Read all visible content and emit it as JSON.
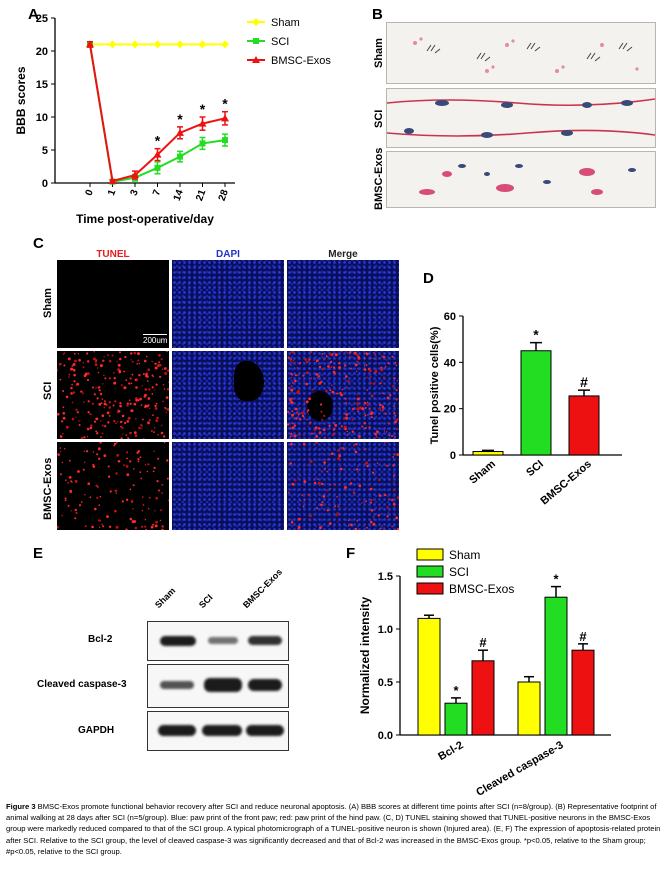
{
  "panels": {
    "A": "A",
    "B": "B",
    "C": "C",
    "D": "D",
    "E": "E",
    "F": "F"
  },
  "colors": {
    "sham": "#ffff00",
    "sci": "#22dd22",
    "bmsc": "#ee1111"
  },
  "chart_data": [
    {
      "id": "A",
      "type": "line",
      "xlabel": "Time post-operative/day",
      "ylabel": "BBB scores",
      "x": [
        0,
        1,
        3,
        7,
        14,
        21,
        28
      ],
      "ylim": [
        0,
        25
      ],
      "yticks": [
        0,
        5,
        10,
        15,
        20,
        25
      ],
      "series": [
        {
          "name": "Sham",
          "values": [
            21,
            21,
            21,
            21,
            21,
            21,
            21
          ],
          "errors": [
            0,
            0,
            0,
            0,
            0,
            0,
            0
          ]
        },
        {
          "name": "SCI",
          "values": [
            21,
            0.2,
            0.8,
            2.3,
            4,
            6,
            6.5
          ],
          "errors": [
            0.4,
            0.2,
            0.5,
            0.9,
            0.8,
            0.9,
            0.9
          ]
        },
        {
          "name": "BMSC-Exos",
          "values": [
            21,
            0.3,
            1.2,
            4.3,
            7.6,
            9,
            9.8
          ],
          "errors": [
            0.4,
            0.2,
            0.6,
            0.9,
            0.9,
            1,
            1
          ]
        }
      ],
      "significance": [
        "",
        "",
        "",
        "*",
        "*",
        "*",
        "*"
      ],
      "legend": "top-right"
    },
    {
      "id": "D",
      "type": "bar",
      "categories": [
        "Sham",
        "SCI",
        "BMSC-Exos"
      ],
      "values": [
        1.5,
        45,
        25.5
      ],
      "errors": [
        0.5,
        3.5,
        2.5
      ],
      "labels": [
        "",
        "*",
        "#"
      ],
      "ylabel": "Tunel positive cells(%)",
      "ylim": [
        0,
        60
      ],
      "yticks": [
        0,
        20,
        40,
        60
      ]
    },
    {
      "id": "F",
      "type": "bar",
      "categories": [
        "Bcl-2",
        "Cleaved caspase-3"
      ],
      "series": [
        {
          "name": "Sham",
          "values": [
            1.1,
            0.5
          ],
          "errors": [
            0.03,
            0.05
          ],
          "labels": [
            "",
            ""
          ]
        },
        {
          "name": "SCI",
          "values": [
            0.3,
            1.3
          ],
          "errors": [
            0.05,
            0.1
          ],
          "labels": [
            "*",
            "*"
          ]
        },
        {
          "name": "BMSC-Exos",
          "values": [
            0.7,
            0.8
          ],
          "errors": [
            0.1,
            0.06
          ],
          "labels": [
            "#",
            "#"
          ]
        }
      ],
      "ylabel": "Normalized intensity",
      "ylim": [
        0,
        1.5
      ],
      "yticks": [
        0.0,
        0.5,
        1.0,
        1.5
      ],
      "legend": "top-left"
    }
  ],
  "footprint": {
    "rows": [
      "Sham",
      "SCI",
      "BMSC-Exos"
    ]
  },
  "staining": {
    "columns": [
      "TUNEL",
      "DAPI",
      "Merge"
    ],
    "rows": [
      "Sham",
      "SCI",
      "BMSC-Exos"
    ],
    "scalebar": "200um"
  },
  "western": {
    "lanes": [
      "Sham",
      "SCI",
      "BMSC-Exos"
    ],
    "proteins": [
      "Bcl-2",
      "Cleaved caspase-3",
      "GAPDH"
    ]
  },
  "caption": {
    "figure_label": "Figure 3",
    "text": " BMSC-Exos promote functional behavior recovery after SCI and reduce neuronal apoptosis. (A) BBB scores at different time points after SCI (n=8/group). (B) Representative footprint of animal walking at 28 days after SCI (n=5/group). Blue: paw print of the front paw; red: paw print of the hind paw. (C, D) TUNEL staining showed that TUNEL-positive neurons in the BMSC-Exos group were markedly reduced compared to that of the SCI group. A typical photomicrograph of a TUNEL-positive neuron is shown (Injured area). (E, F) The expression of apoptosis-related protein after SCI. Relative to the SCI group, the level of cleaved caspase-3 was significantly decreased and that of Bcl-2 was increased in the BMSC-Exos group. *p<0.05, relative to the Sham group; #p<0.05, relative to the SCI group."
  }
}
